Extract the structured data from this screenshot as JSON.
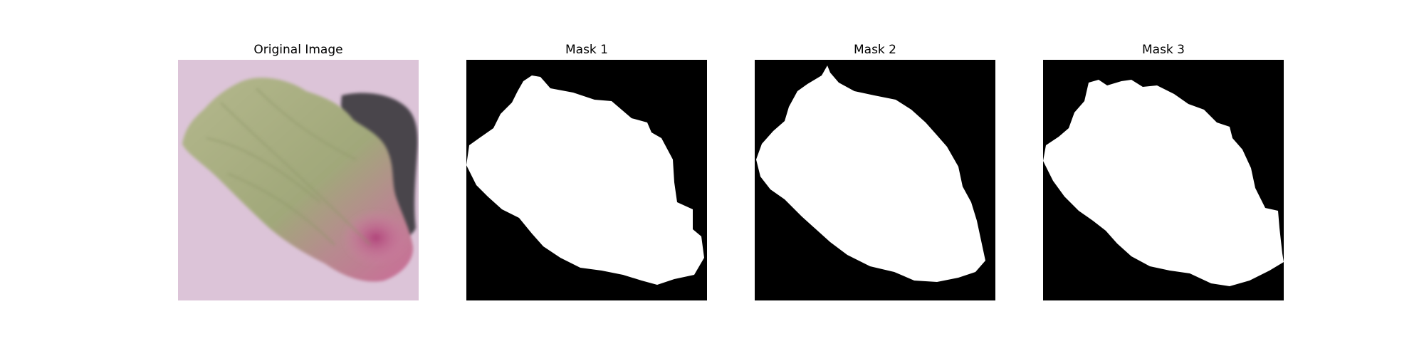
{
  "figure": {
    "panels": [
      {
        "title": "Original Image",
        "kind": "photo"
      },
      {
        "title": "Mask 1",
        "kind": "mask"
      },
      {
        "title": "Mask 2",
        "kind": "mask"
      },
      {
        "title": "Mask 3",
        "kind": "mask"
      }
    ]
  },
  "colors": {
    "mask_background": "#000000",
    "mask_foreground": "#ffffff",
    "photo_background": "#dcc4d8",
    "leaf_green": "#a3ab7b",
    "leaf_pink": "#c66a93",
    "shadow": "#4a454c"
  }
}
